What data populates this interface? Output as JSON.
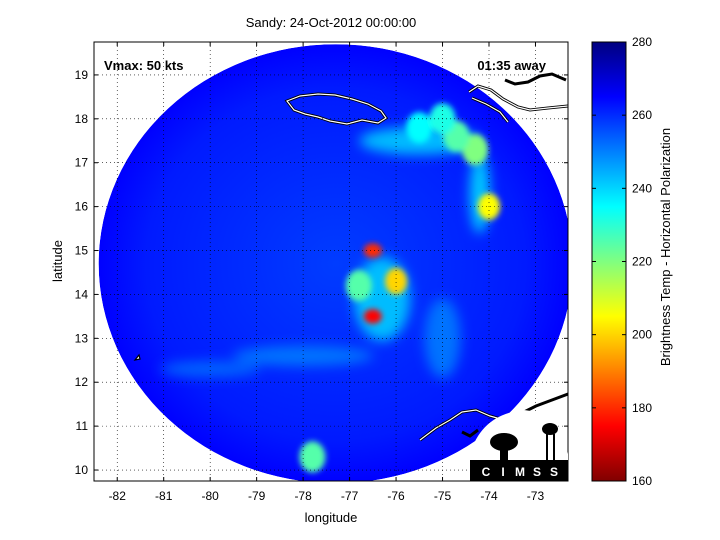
{
  "chart_data": {
    "type": "heatmap",
    "title": "Sandy: 24-Oct-2012 00:00:00",
    "xlabel": "longitude",
    "ylabel": "latitude",
    "xlim": [
      -82.5,
      -72.3
    ],
    "ylim": [
      9.75,
      19.75
    ],
    "x_ticks": [
      -82,
      -81,
      -80,
      -79,
      -78,
      -77,
      -76,
      -75,
      -74,
      -73
    ],
    "y_ticks": [
      10,
      11,
      12,
      13,
      14,
      15,
      16,
      17,
      18,
      19
    ],
    "grid": true,
    "annotations": {
      "vmax": "Vmax: 50 kts",
      "time_away": "01:35 away"
    },
    "colorbar": {
      "label": "Brightness Temp - Horizontal Polarization",
      "min": 160,
      "max": 280,
      "ticks": [
        160,
        180,
        200,
        220,
        240,
        260,
        280
      ],
      "colormap": [
        "#800000",
        "#ff0000",
        "#ff8000",
        "#ffff00",
        "#80ff80",
        "#00ffff",
        "#0080ff",
        "#0000ff",
        "#000080"
      ]
    },
    "swath": {
      "center": [
        -77.3,
        14.7
      ],
      "radius_lon": 5.1,
      "radius_lat": 5.0,
      "background_temp": 262
    },
    "features": [
      {
        "lon": -76.5,
        "lat": 13.5,
        "temp": 175
      },
      {
        "lon": -76.5,
        "lat": 15.0,
        "temp": 180
      },
      {
        "lon": -76.0,
        "lat": 14.3,
        "temp": 200
      },
      {
        "lon": -76.8,
        "lat": 14.2,
        "temp": 225
      },
      {
        "lon": -74.0,
        "lat": 16.0,
        "temp": 205
      },
      {
        "lon": -74.3,
        "lat": 17.3,
        "temp": 220
      },
      {
        "lon": -74.7,
        "lat": 17.6,
        "temp": 225
      },
      {
        "lon": -75.5,
        "lat": 17.8,
        "temp": 235
      },
      {
        "lon": -77.8,
        "lat": 10.3,
        "temp": 225
      },
      {
        "lon": -75.0,
        "lat": 18.0,
        "temp": 232
      }
    ],
    "logo_text": "CIMSS"
  }
}
